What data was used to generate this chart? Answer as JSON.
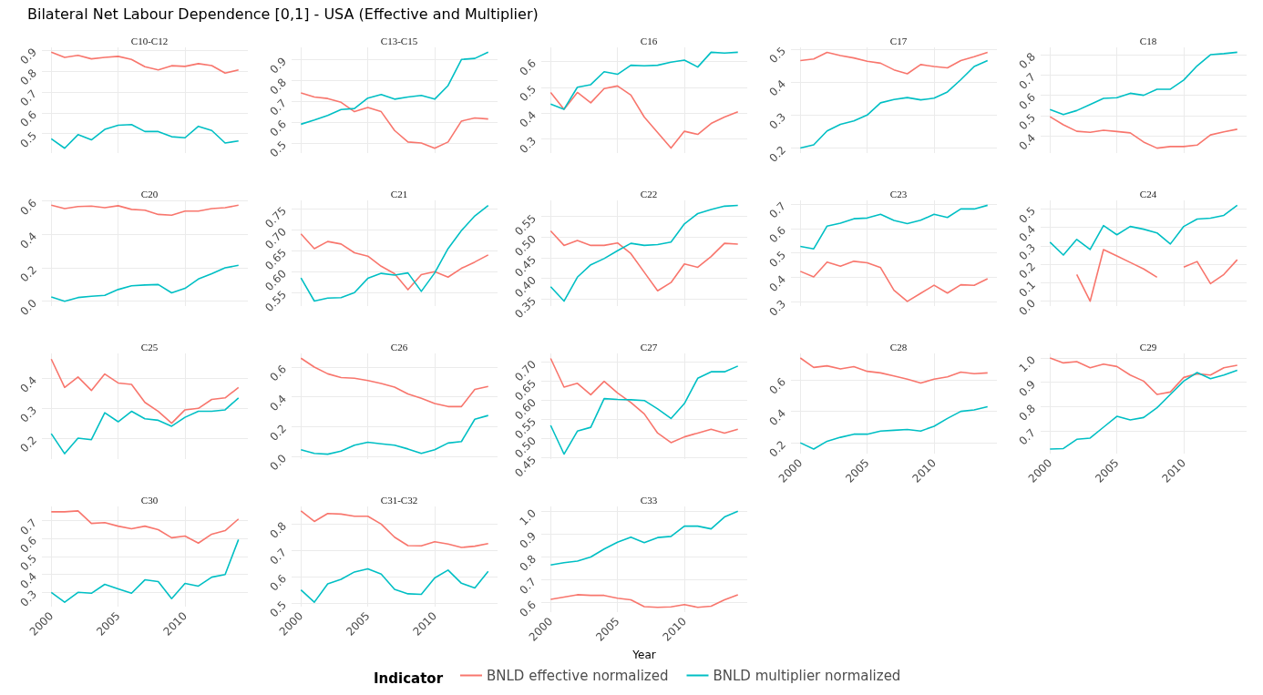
{
  "chart_data": [
    {
      "type": "other",
      "title": "Bilateral Net Labour Dependence [0,1] - USA (Effective and Multiplier)"
    },
    {
      "type": "line",
      "title": "C10-C12",
      "x": [
        2000,
        2001,
        2002,
        2003,
        2004,
        2005,
        2006,
        2007,
        2008,
        2009,
        2010,
        2011,
        2012,
        2013,
        2014
      ],
      "xlim": [
        1999.3,
        2014.7
      ],
      "xticks": [
        2000,
        2005,
        2010
      ],
      "ylim": [
        0.407,
        0.913
      ],
      "yticks": [
        0.5,
        0.6,
        0.7,
        0.8,
        0.9
      ],
      "grid": true,
      "tick_labels": "y",
      "series": [
        {
          "color": "#f8766d",
          "values": [
            0.89,
            0.865,
            0.875,
            0.858,
            0.865,
            0.87,
            0.855,
            0.82,
            0.805,
            0.825,
            0.822,
            0.835,
            0.826,
            0.79,
            0.805
          ]
        },
        {
          "color": "#00bfc4",
          "values": [
            0.475,
            0.43,
            0.495,
            0.47,
            0.52,
            0.54,
            0.543,
            0.51,
            0.51,
            0.485,
            0.48,
            0.535,
            0.515,
            0.455,
            0.465
          ]
        }
      ]
    },
    {
      "type": "line",
      "title": "C13-C15",
      "x": [
        2000,
        2001,
        2002,
        2003,
        2004,
        2005,
        2006,
        2007,
        2008,
        2009,
        2010,
        2011,
        2012,
        2013,
        2014
      ],
      "xlim": [
        1999.3,
        2014.7
      ],
      "xticks": [
        2000,
        2005,
        2010
      ],
      "ylim": [
        0.452,
        0.958
      ],
      "yticks": [
        0.5,
        0.6,
        0.7,
        0.8,
        0.9
      ],
      "grid": true,
      "tick_labels": "y",
      "series": [
        {
          "color": "#f8766d",
          "values": [
            0.74,
            0.72,
            0.713,
            0.695,
            0.65,
            0.67,
            0.65,
            0.56,
            0.505,
            0.5,
            0.475,
            0.505,
            0.605,
            0.62,
            0.615
          ]
        },
        {
          "color": "#00bfc4",
          "values": [
            0.59,
            0.61,
            0.632,
            0.66,
            0.665,
            0.715,
            0.732,
            0.71,
            0.72,
            0.728,
            0.71,
            0.775,
            0.9,
            0.905,
            0.935
          ]
        }
      ]
    },
    {
      "type": "line",
      "title": "C16",
      "x": [
        2000,
        2001,
        2002,
        2003,
        2004,
        2005,
        2006,
        2007,
        2008,
        2009,
        2010,
        2011,
        2012,
        2013,
        2014
      ],
      "xlim": [
        1999.3,
        2014.7
      ],
      "xticks": [
        2000,
        2005,
        2010
      ],
      "ylim": [
        0.246,
        0.654
      ],
      "yticks": [
        0.3,
        0.4,
        0.5,
        0.6
      ],
      "grid": true,
      "tick_labels": "y",
      "series": [
        {
          "color": "#f8766d",
          "values": [
            0.48,
            0.415,
            0.48,
            0.44,
            0.495,
            0.505,
            0.47,
            0.385,
            0.325,
            0.265,
            0.33,
            0.318,
            0.36,
            0.385,
            0.405
          ]
        },
        {
          "color": "#00bfc4",
          "values": [
            0.435,
            0.415,
            0.5,
            0.51,
            0.56,
            0.55,
            0.585,
            0.583,
            0.585,
            0.597,
            0.605,
            0.578,
            0.635,
            0.632,
            0.635
          ]
        }
      ]
    },
    {
      "type": "line",
      "title": "C17",
      "x": [
        2000,
        2001,
        2002,
        2003,
        2004,
        2005,
        2006,
        2007,
        2008,
        2009,
        2010,
        2011,
        2012,
        2013,
        2014
      ],
      "xlim": [
        1999.3,
        2014.7
      ],
      "xticks": [
        2000,
        2005,
        2010
      ],
      "ylim": [
        0.185,
        0.505
      ],
      "yticks": [
        0.2,
        0.3,
        0.4,
        0.5
      ],
      "grid": true,
      "tick_labels": "y",
      "series": [
        {
          "color": "#f8766d",
          "values": [
            0.465,
            0.47,
            0.49,
            0.48,
            0.473,
            0.463,
            0.457,
            0.437,
            0.425,
            0.453,
            0.447,
            0.443,
            0.465,
            0.477,
            0.49
          ]
        },
        {
          "color": "#00bfc4",
          "values": [
            0.2,
            0.21,
            0.252,
            0.272,
            0.282,
            0.3,
            0.337,
            0.347,
            0.353,
            0.346,
            0.351,
            0.37,
            0.407,
            0.447,
            0.465
          ]
        }
      ]
    },
    {
      "type": "line",
      "title": "C18",
      "x": [
        2000,
        2001,
        2002,
        2003,
        2004,
        2005,
        2006,
        2007,
        2008,
        2009,
        2010,
        2011,
        2012,
        2013,
        2014
      ],
      "xlim": [
        1999.3,
        2014.7
      ],
      "xticks": [
        2000,
        2005,
        2010
      ],
      "ylim": [
        0.316,
        0.836
      ],
      "yticks": [
        0.4,
        0.5,
        0.6,
        0.7,
        0.8
      ],
      "grid": true,
      "tick_labels": "y",
      "series": [
        {
          "color": "#f8766d",
          "values": [
            0.495,
            0.455,
            0.423,
            0.418,
            0.428,
            0.422,
            0.415,
            0.37,
            0.34,
            0.348,
            0.348,
            0.355,
            0.405,
            0.42,
            0.433
          ]
        },
        {
          "color": "#00bfc4",
          "values": [
            0.53,
            0.505,
            0.525,
            0.555,
            0.585,
            0.588,
            0.61,
            0.6,
            0.63,
            0.63,
            0.675,
            0.745,
            0.8,
            0.805,
            0.812
          ]
        }
      ]
    },
    {
      "type": "line",
      "title": "C20",
      "x": [
        2000,
        2001,
        2002,
        2003,
        2004,
        2005,
        2006,
        2007,
        2008,
        2009,
        2010,
        2011,
        2012,
        2013,
        2014
      ],
      "xlim": [
        1999.3,
        2014.7
      ],
      "xticks": [
        2000,
        2005,
        2010
      ],
      "ylim": [
        -0.029,
        0.604
      ],
      "yticks": [
        {
          "value": 0,
          "label": "0.0"
        },
        0.2,
        0.4,
        0.6
      ],
      "grid": true,
      "tick_labels": "y",
      "series": [
        {
          "color": "#f8766d",
          "values": [
            0.575,
            0.555,
            0.567,
            0.57,
            0.56,
            0.572,
            0.55,
            0.545,
            0.52,
            0.515,
            0.54,
            0.54,
            0.555,
            0.56,
            0.575
          ]
        },
        {
          "color": "#00bfc4",
          "values": [
            0.025,
            0.0,
            0.022,
            0.03,
            0.035,
            0.07,
            0.092,
            0.097,
            0.1,
            0.05,
            0.077,
            0.133,
            0.165,
            0.2,
            0.215
          ]
        }
      ]
    },
    {
      "type": "line",
      "title": "C21",
      "x": [
        2000,
        2001,
        2002,
        2003,
        2004,
        2005,
        2006,
        2007,
        2008,
        2009,
        2010,
        2011,
        2012,
        2013,
        2014
      ],
      "xlim": [
        1999.3,
        2014.7
      ],
      "xticks": [
        2000,
        2005,
        2010
      ],
      "ylim": [
        0.518,
        0.77
      ],
      "yticks": [
        0.55,
        {
          "value": 0.6,
          "label": "0.60"
        },
        0.65,
        {
          "value": 0.7,
          "label": "0.70"
        },
        0.75
      ],
      "grid": true,
      "tick_labels": "y",
      "series": [
        {
          "color": "#f8766d",
          "values": [
            0.69,
            0.655,
            0.672,
            0.666,
            0.645,
            0.637,
            0.613,
            0.595,
            0.557,
            0.593,
            0.6,
            0.587,
            0.608,
            0.623,
            0.64
          ]
        },
        {
          "color": "#00bfc4",
          "values": [
            0.585,
            0.53,
            0.537,
            0.538,
            0.55,
            0.584,
            0.596,
            0.592,
            0.597,
            0.553,
            0.597,
            0.655,
            0.698,
            0.733,
            0.758
          ]
        }
      ]
    },
    {
      "type": "line",
      "title": "C22",
      "x": [
        2000,
        2001,
        2002,
        2003,
        2004,
        2005,
        2006,
        2007,
        2008,
        2009,
        2010,
        2011,
        2012,
        2013,
        2014
      ],
      "xlim": [
        1999.3,
        2014.7
      ],
      "xticks": [
        2000,
        2005,
        2010
      ],
      "ylim": [
        0.333,
        0.589
      ],
      "yticks": [
        0.35,
        {
          "value": 0.4,
          "label": "0.40"
        },
        0.45,
        {
          "value": 0.5,
          "label": "0.50"
        },
        0.55
      ],
      "grid": true,
      "tick_labels": "y",
      "series": [
        {
          "color": "#f8766d",
          "values": [
            0.515,
            0.48,
            0.492,
            0.48,
            0.48,
            0.486,
            0.46,
            0.415,
            0.37,
            0.39,
            0.435,
            0.427,
            0.453,
            0.485,
            0.483
          ]
        },
        {
          "color": "#00bfc4",
          "values": [
            0.38,
            0.345,
            0.403,
            0.433,
            0.448,
            0.467,
            0.485,
            0.48,
            0.482,
            0.488,
            0.532,
            0.557,
            0.567,
            0.575,
            0.577
          ]
        }
      ]
    },
    {
      "type": "line",
      "title": "C23",
      "x": [
        2000,
        2001,
        2002,
        2003,
        2004,
        2005,
        2006,
        2007,
        2008,
        2009,
        2010,
        2011,
        2012,
        2013,
        2014
      ],
      "xlim": [
        1999.3,
        2014.7
      ],
      "xticks": [
        2000,
        2005,
        2010
      ],
      "ylim": [
        0.283,
        0.715
      ],
      "yticks": [
        0.3,
        0.4,
        0.5,
        0.6,
        0.7
      ],
      "grid": true,
      "tick_labels": "y",
      "series": [
        {
          "color": "#f8766d",
          "values": [
            0.425,
            0.402,
            0.463,
            0.446,
            0.466,
            0.46,
            0.44,
            0.348,
            0.302,
            0.335,
            0.368,
            0.336,
            0.37,
            0.368,
            0.395
          ]
        },
        {
          "color": "#00bfc4",
          "values": [
            0.527,
            0.517,
            0.61,
            0.622,
            0.64,
            0.643,
            0.658,
            0.633,
            0.62,
            0.634,
            0.658,
            0.645,
            0.68,
            0.68,
            0.695
          ]
        }
      ]
    },
    {
      "type": "line",
      "title": "C24",
      "x": [
        2000,
        2001,
        2002,
        2003,
        2004,
        2005,
        2006,
        2007,
        2008,
        2009,
        2010,
        2011,
        2012,
        2013,
        2014
      ],
      "xlim": [
        1999.3,
        2014.7
      ],
      "xticks": [
        2000,
        2005,
        2010
      ],
      "ylim": [
        -0.026,
        0.546
      ],
      "yticks": [
        {
          "value": 0,
          "label": "0.0"
        },
        0.1,
        0.2,
        0.3,
        0.4,
        0.5
      ],
      "grid": true,
      "tick_labels": "y",
      "series": [
        {
          "color": "#f8766d",
          "values": [
            null,
            null,
            0.145,
            0.0,
            0.28,
            0.245,
            0.21,
            0.175,
            0.13,
            null,
            0.185,
            0.215,
            0.095,
            0.145,
            0.225
          ]
        },
        {
          "color": "#00bfc4",
          "values": [
            0.32,
            0.25,
            0.335,
            0.28,
            0.41,
            0.36,
            0.405,
            0.39,
            0.37,
            0.31,
            0.405,
            0.445,
            0.45,
            0.465,
            0.52
          ]
        }
      ]
    },
    {
      "type": "line",
      "title": "C25",
      "x": [
        2000,
        2001,
        2002,
        2003,
        2004,
        2005,
        2006,
        2007,
        2008,
        2009,
        2010,
        2011,
        2012,
        2013,
        2014
      ],
      "xlim": [
        1999.3,
        2014.7
      ],
      "xticks": [
        2000,
        2005,
        2010
      ],
      "ylim": [
        0.13,
        0.484
      ],
      "yticks": [
        0.2,
        0.3,
        0.4
      ],
      "grid": true,
      "tick_labels": "y",
      "series": [
        {
          "color": "#f8766d",
          "values": [
            0.465,
            0.37,
            0.405,
            0.36,
            0.415,
            0.385,
            0.38,
            0.32,
            0.29,
            0.25,
            0.295,
            0.3,
            0.33,
            0.335,
            0.37
          ]
        },
        {
          "color": "#00bfc4",
          "values": [
            0.215,
            0.148,
            0.2,
            0.195,
            0.285,
            0.255,
            0.29,
            0.265,
            0.26,
            0.24,
            0.27,
            0.29,
            0.29,
            0.295,
            0.335
          ]
        }
      ]
    },
    {
      "type": "line",
      "title": "C26",
      "x": [
        2000,
        2001,
        2002,
        2003,
        2004,
        2005,
        2006,
        2007,
        2008,
        2009,
        2010,
        2011,
        2012,
        2013,
        2014
      ],
      "xlim": [
        1999.3,
        2014.7
      ],
      "xticks": [
        2000,
        2005,
        2010
      ],
      "ylim": [
        -0.018,
        0.692
      ],
      "yticks": [
        {
          "value": 0,
          "label": "0.0"
        },
        0.2,
        0.4,
        0.6
      ],
      "grid": true,
      "tick_labels": "y",
      "series": [
        {
          "color": "#f8766d",
          "values": [
            0.66,
            0.6,
            0.555,
            0.53,
            0.525,
            0.51,
            0.49,
            0.465,
            0.42,
            0.39,
            0.355,
            0.335,
            0.335,
            0.45,
            0.47
          ]
        },
        {
          "color": "#00bfc4",
          "values": [
            0.045,
            0.02,
            0.015,
            0.035,
            0.075,
            0.095,
            0.085,
            0.075,
            0.05,
            0.02,
            0.045,
            0.09,
            0.1,
            0.25,
            0.275
          ]
        }
      ]
    },
    {
      "type": "line",
      "title": "C27",
      "x": [
        2000,
        2001,
        2002,
        2003,
        2004,
        2005,
        2006,
        2007,
        2008,
        2009,
        2010,
        2011,
        2012,
        2013,
        2014
      ],
      "xlim": [
        1999.3,
        2014.7
      ],
      "xticks": [
        2000,
        2005,
        2010
      ],
      "ylim": [
        0.447,
        0.723
      ],
      "yticks": [
        0.45,
        {
          "value": 0.5,
          "label": "0.50"
        },
        0.55,
        {
          "value": 0.6,
          "label": "0.60"
        },
        0.65,
        {
          "value": 0.7,
          "label": "0.70"
        }
      ],
      "grid": true,
      "tick_labels": "y",
      "series": [
        {
          "color": "#f8766d",
          "values": [
            0.71,
            0.635,
            0.645,
            0.615,
            0.65,
            0.62,
            0.595,
            0.565,
            0.515,
            0.49,
            0.505,
            0.515,
            0.525,
            0.515,
            0.525
          ]
        },
        {
          "color": "#00bfc4",
          "values": [
            0.535,
            0.46,
            0.52,
            0.53,
            0.605,
            0.603,
            0.602,
            0.6,
            0.578,
            0.553,
            0.592,
            0.658,
            0.675,
            0.675,
            0.69
          ]
        }
      ]
    },
    {
      "type": "line",
      "title": "C28",
      "x": [
        2000,
        2001,
        2002,
        2003,
        2004,
        2005,
        2006,
        2007,
        2008,
        2009,
        2010,
        2011,
        2012,
        2013,
        2014
      ],
      "xlim": [
        1999.3,
        2014.7
      ],
      "xticks": [
        2000,
        2005,
        2010
      ],
      "ylim": [
        0.131,
        0.769
      ],
      "yticks": [
        0.2,
        0.4,
        0.6
      ],
      "grid": true,
      "series": [
        {
          "color": "#f8766d",
          "values": [
            0.74,
            0.68,
            0.69,
            0.67,
            0.685,
            0.655,
            0.645,
            0.625,
            0.605,
            0.58,
            0.605,
            0.62,
            0.65,
            0.64,
            0.645
          ]
        },
        {
          "color": "#00bfc4",
          "values": [
            0.2,
            0.16,
            0.21,
            0.235,
            0.255,
            0.255,
            0.275,
            0.28,
            0.285,
            0.275,
            0.305,
            0.355,
            0.4,
            0.41,
            0.43
          ]
        }
      ]
    },
    {
      "type": "line",
      "title": "C29",
      "x": [
        2000,
        2001,
        2002,
        2003,
        2004,
        2005,
        2006,
        2007,
        2008,
        2009,
        2010,
        2011,
        2012,
        2013,
        2014
      ],
      "xlim": [
        1999.3,
        2014.7
      ],
      "xticks": [
        2000,
        2005,
        2010
      ],
      "ylim": [
        0.606,
        1.019
      ],
      "yticks": [
        0.7,
        0.8,
        0.9,
        {
          "value": 1,
          "label": "1.0"
        }
      ],
      "grid": true,
      "series": [
        {
          "color": "#f8766d",
          "values": [
            1.0,
            0.98,
            0.985,
            0.96,
            0.975,
            0.965,
            0.93,
            0.905,
            0.85,
            0.86,
            0.92,
            0.935,
            0.93,
            0.96,
            0.97
          ]
        },
        {
          "color": "#00bfc4",
          "values": [
            0.625,
            0.627,
            0.665,
            0.67,
            0.715,
            0.76,
            0.745,
            0.755,
            0.795,
            0.85,
            0.905,
            0.94,
            0.915,
            0.93,
            0.95
          ]
        }
      ]
    },
    {
      "type": "line",
      "title": "C30",
      "x": [
        2000,
        2001,
        2002,
        2003,
        2004,
        2005,
        2006,
        2007,
        2008,
        2009,
        2010,
        2011,
        2012,
        2013,
        2014
      ],
      "xlim": [
        1999.3,
        2014.7
      ],
      "xticks": [
        2000,
        2005,
        2010
      ],
      "ylim": [
        0.22,
        0.78
      ],
      "yticks": [
        0.3,
        0.4,
        0.5,
        0.6,
        0.7
      ],
      "grid": true,
      "series": [
        {
          "color": "#f8766d",
          "values": [
            0.75,
            0.75,
            0.755,
            0.685,
            0.69,
            0.67,
            0.655,
            0.67,
            0.65,
            0.605,
            0.615,
            0.575,
            0.625,
            0.645,
            0.71
          ]
        },
        {
          "color": "#00bfc4",
          "values": [
            0.3,
            0.245,
            0.3,
            0.295,
            0.345,
            0.32,
            0.295,
            0.37,
            0.36,
            0.265,
            0.35,
            0.335,
            0.385,
            0.4,
            0.595
          ]
        }
      ]
    },
    {
      "type": "line",
      "title": "C31-C32",
      "x": [
        2000,
        2001,
        2002,
        2003,
        2004,
        2005,
        2006,
        2007,
        2008,
        2009,
        2010,
        2011,
        2012,
        2013,
        2014
      ],
      "xlim": [
        1999.3,
        2014.7
      ],
      "xticks": [
        2000,
        2005,
        2010
      ],
      "ylim": [
        0.486,
        0.867
      ],
      "yticks": [
        0.5,
        0.6,
        0.7,
        0.8
      ],
      "grid": true,
      "series": [
        {
          "color": "#f8766d",
          "values": [
            0.85,
            0.81,
            0.84,
            0.838,
            0.83,
            0.83,
            0.8,
            0.75,
            0.718,
            0.717,
            0.733,
            0.724,
            0.711,
            0.716,
            0.726
          ]
        },
        {
          "color": "#00bfc4",
          "values": [
            0.55,
            0.503,
            0.573,
            0.59,
            0.618,
            0.63,
            0.61,
            0.552,
            0.535,
            0.533,
            0.595,
            0.625,
            0.575,
            0.557,
            0.62
          ]
        }
      ]
    },
    {
      "type": "line",
      "title": "C33",
      "xlabel": "Year",
      "legend": "bottom",
      "legend_title": "Indicator",
      "x": [
        2000,
        2001,
        2002,
        2003,
        2004,
        2005,
        2006,
        2007,
        2008,
        2009,
        2010,
        2011,
        2012,
        2013,
        2014
      ],
      "xlim": [
        1999.3,
        2014.7
      ],
      "xticks": [
        2000,
        2005,
        2010
      ],
      "ylim": [
        0.559,
        1.021
      ],
      "yticks": [
        0.6,
        0.7,
        0.8,
        0.9,
        {
          "value": 1,
          "label": "1.0"
        }
      ],
      "grid": true,
      "series": [
        {
          "name": "BNLD effective normalized",
          "color": "#f8766d",
          "values": [
            0.615,
            0.625,
            0.635,
            0.632,
            0.632,
            0.62,
            0.613,
            0.583,
            0.58,
            0.582,
            0.592,
            0.58,
            0.585,
            0.613,
            0.635
          ]
        },
        {
          "name": "BNLD multiplier normalized",
          "color": "#00bfc4",
          "values": [
            0.765,
            0.775,
            0.782,
            0.8,
            0.835,
            0.865,
            0.887,
            0.863,
            0.885,
            0.89,
            0.935,
            0.935,
            0.923,
            0.975,
            1.0
          ]
        }
      ]
    }
  ]
}
